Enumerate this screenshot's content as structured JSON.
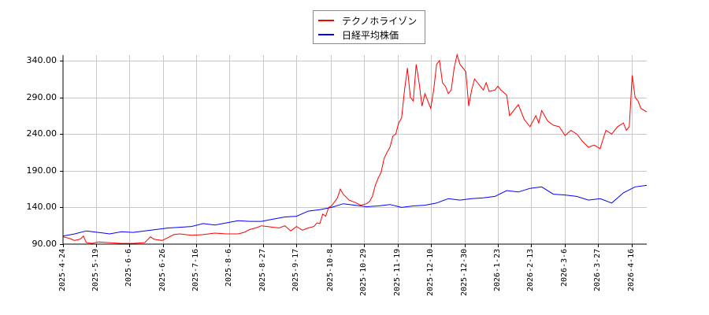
{
  "chart_data": {
    "type": "line",
    "title": "",
    "xlabel": "",
    "ylabel": "",
    "ylim": [
      90,
      350
    ],
    "grid": true,
    "legend_position": "top-center",
    "yticks": [
      "340.00",
      "290.00",
      "240.00",
      "190.00",
      "140.00",
      "90.00"
    ],
    "ytick_values": [
      340,
      290,
      240,
      190,
      140,
      90
    ],
    "xticks": [
      "2025-4-24",
      "2025-5-19",
      "2025-6-6",
      "2025-6-26",
      "2025-7-16",
      "2025-8-6",
      "2025-8-27",
      "2025-9-17",
      "2025-10-8",
      "2025-10-29",
      "2025-11-19",
      "2025-12-10",
      "2025-12-30",
      "2026-1-23",
      "2026-2-13",
      "2026-3-6",
      "2026-3-27",
      "2026-4-16"
    ],
    "series": [
      {
        "name": "テクノホライゾン",
        "color": "#ff0000",
        "x_frac": [
          0,
          0.01,
          0.02,
          0.03,
          0.035,
          0.04,
          0.05,
          0.06,
          0.08,
          0.1,
          0.12,
          0.14,
          0.15,
          0.155,
          0.16,
          0.17,
          0.18,
          0.19,
          0.2,
          0.22,
          0.24,
          0.26,
          0.28,
          0.3,
          0.31,
          0.32,
          0.33,
          0.34,
          0.35,
          0.36,
          0.37,
          0.38,
          0.39,
          0.4,
          0.41,
          0.42,
          0.43,
          0.435,
          0.44,
          0.445,
          0.45,
          0.455,
          0.46,
          0.47,
          0.475,
          0.48,
          0.49,
          0.5,
          0.51,
          0.52,
          0.525,
          0.53,
          0.535,
          0.54,
          0.545,
          0.55,
          0.555,
          0.56,
          0.565,
          0.57,
          0.575,
          0.58,
          0.585,
          0.59,
          0.595,
          0.6,
          0.605,
          0.61,
          0.615,
          0.62,
          0.625,
          0.63,
          0.635,
          0.64,
          0.645,
          0.65,
          0.655,
          0.66,
          0.665,
          0.67,
          0.675,
          0.68,
          0.685,
          0.69,
          0.695,
          0.7,
          0.705,
          0.71,
          0.715,
          0.72,
          0.725,
          0.73,
          0.74,
          0.745,
          0.75,
          0.76,
          0.765,
          0.77,
          0.78,
          0.79,
          0.8,
          0.81,
          0.815,
          0.82,
          0.83,
          0.84,
          0.85,
          0.86,
          0.87,
          0.88,
          0.89,
          0.9,
          0.91,
          0.92,
          0.93,
          0.94,
          0.95,
          0.96,
          0.965,
          0.97,
          0.975,
          0.98,
          0.985,
          0.99,
          1.0
        ],
        "values": [
          100,
          98,
          95,
          97,
          101,
          92,
          91,
          93,
          92,
          91,
          91,
          92,
          100,
          97,
          96,
          95,
          99,
          103,
          104,
          102,
          103,
          105,
          104,
          104,
          106,
          110,
          112,
          115,
          114,
          113,
          112,
          115,
          108,
          114,
          109,
          112,
          114,
          119,
          118,
          131,
          128,
          140,
          142,
          153,
          165,
          158,
          150,
          147,
          143,
          145,
          148,
          155,
          170,
          180,
          188,
          207,
          215,
          222,
          237,
          240,
          255,
          262,
          300,
          330,
          290,
          285,
          335,
          310,
          278,
          295,
          285,
          275,
          300,
          335,
          340,
          310,
          305,
          295,
          300,
          330,
          348,
          335,
          330,
          325,
          278,
          300,
          315,
          310,
          305,
          300,
          310,
          298,
          300,
          305,
          300,
          293,
          265,
          270,
          280,
          260,
          250,
          265,
          255,
          272,
          258,
          252,
          250,
          238,
          245,
          240,
          230,
          222,
          225,
          220,
          245,
          240,
          250,
          255,
          245,
          250,
          320,
          290,
          285,
          275,
          270
        ]
      },
      {
        "name": "日経平均株価",
        "color": "#0000ff",
        "x_frac": [
          0,
          0.02,
          0.04,
          0.06,
          0.08,
          0.1,
          0.12,
          0.14,
          0.16,
          0.18,
          0.2,
          0.22,
          0.24,
          0.26,
          0.28,
          0.3,
          0.32,
          0.34,
          0.36,
          0.38,
          0.4,
          0.42,
          0.44,
          0.46,
          0.48,
          0.5,
          0.52,
          0.54,
          0.56,
          0.58,
          0.6,
          0.62,
          0.64,
          0.66,
          0.68,
          0.7,
          0.72,
          0.74,
          0.76,
          0.78,
          0.8,
          0.82,
          0.84,
          0.86,
          0.88,
          0.9,
          0.92,
          0.94,
          0.96,
          0.98,
          1.0
        ],
        "values": [
          101,
          104,
          108,
          106,
          104,
          107,
          106,
          108,
          110,
          112,
          113,
          114,
          118,
          116,
          119,
          122,
          121,
          121,
          124,
          127,
          128,
          135,
          137,
          140,
          145,
          143,
          141,
          142,
          144,
          140,
          142,
          143,
          146,
          152,
          150,
          152,
          153,
          155,
          163,
          161,
          166,
          168,
          158,
          157,
          155,
          150,
          152,
          146,
          160,
          168,
          170
        ]
      }
    ]
  },
  "legend": {
    "items": [
      {
        "label": "テクノホライゾン",
        "color": "#ff0000"
      },
      {
        "label": "日経平均株価",
        "color": "#0000ff"
      }
    ]
  }
}
